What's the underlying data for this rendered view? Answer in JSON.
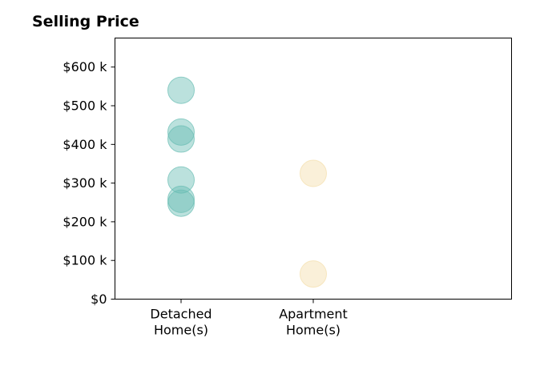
{
  "chart_data": {
    "type": "scatter",
    "title": "Selling Price",
    "xlabel": "",
    "ylabel": "",
    "categories": [
      "Detached\nHome(s)",
      "Apartment\nHome(s)"
    ],
    "y_tick_labels": [
      "$0",
      "$100 k",
      "$200 k",
      "$300 k",
      "$400 k",
      "$500 k",
      "$600 k"
    ],
    "y_tick_values": [
      0,
      100000,
      200000,
      300000,
      400000,
      500000,
      600000
    ],
    "ylim": [
      0,
      675000
    ],
    "xlim": [
      -0.5,
      2.5
    ],
    "grid": false,
    "series": [
      {
        "category_index": 0,
        "color": "#69bdb4",
        "values": [
          540000,
          432000,
          414000,
          308000,
          258000,
          248000
        ]
      },
      {
        "category_index": 1,
        "color": "#f3deab",
        "values": [
          325000,
          65000
        ]
      }
    ]
  }
}
